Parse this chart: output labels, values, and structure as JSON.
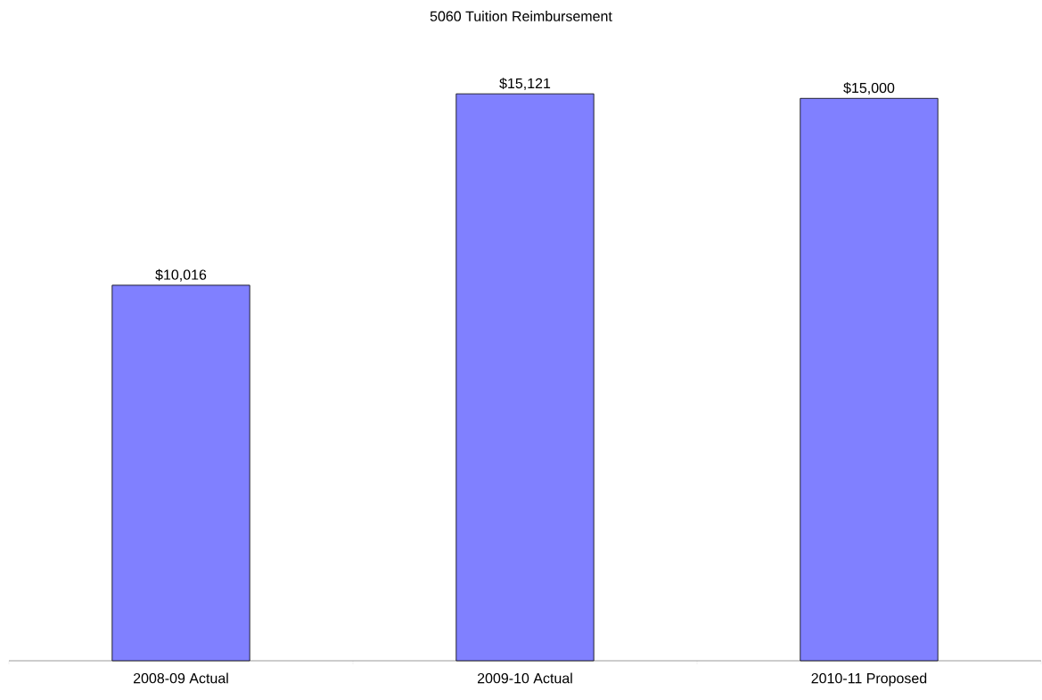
{
  "chart_data": {
    "type": "bar",
    "title": "5060  Tuition Reimbursement",
    "categories": [
      "2008-09 Actual",
      "2009-10 Actual",
      "2010-11 Proposed"
    ],
    "values": [
      10016,
      15121,
      15000
    ],
    "value_labels": [
      "$10,016",
      "$15,121",
      "$15,000"
    ],
    "color": "#8080ff"
  }
}
